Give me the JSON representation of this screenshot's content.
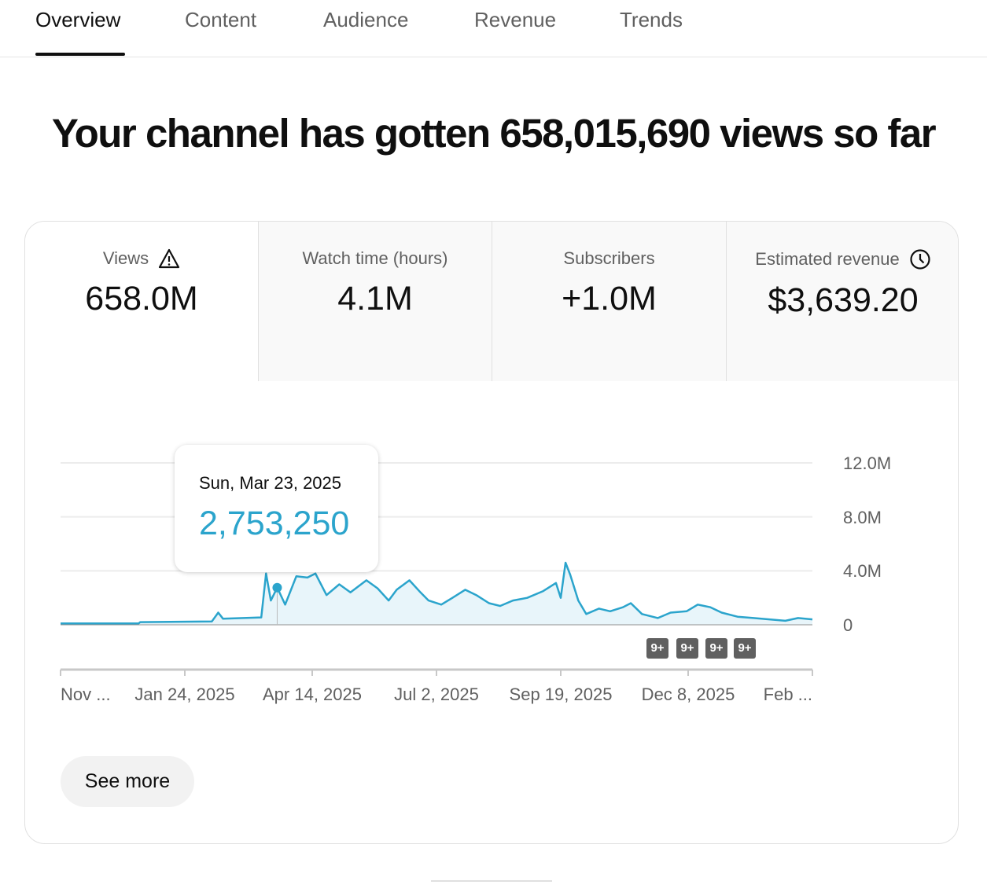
{
  "tabs": [
    {
      "label": "Overview",
      "active": true
    },
    {
      "label": "Content"
    },
    {
      "label": "Audience"
    },
    {
      "label": "Revenue"
    },
    {
      "label": "Trends"
    }
  ],
  "headline": "Your channel has gotten 658,015,690 views so far",
  "metrics": [
    {
      "label": "Views",
      "value": "658.0M",
      "icon": "warning-icon"
    },
    {
      "label": "Watch time (hours)",
      "value": "4.1M"
    },
    {
      "label": "Subscribers",
      "value": "+1.0M"
    },
    {
      "label": "Estimated revenue",
      "value": "$3,639.20",
      "icon": "clock-icon"
    }
  ],
  "tooltip": {
    "date": "Sun, Mar 23, 2025",
    "value": "2,753,250"
  },
  "badges": [
    "9+",
    "9+",
    "9+",
    "9+"
  ],
  "see_more": "See more",
  "colors": {
    "line": "#2ba4cc",
    "fill": "#e8f5fa",
    "accent_text": "#2ba4cc"
  },
  "chart_data": {
    "type": "line",
    "y_ticks": [
      "12.0M",
      "8.0M",
      "4.0M",
      "0"
    ],
    "ylim": [
      0,
      12000000
    ],
    "x_ticks": [
      "Nov ...",
      "Jan 24, 2025",
      "Apr 14, 2025",
      "Jul 2, 2025",
      "Sep 19, 2025",
      "Dec 8, 2025",
      "Feb ..."
    ],
    "grid": true,
    "highlight": {
      "date": "2025-03-23",
      "value": 2753250
    },
    "points": [
      [
        "2024-11-07",
        100000
      ],
      [
        "2024-12-26",
        100000
      ],
      [
        "2024-12-27",
        200000
      ],
      [
        "2025-02-10",
        250000
      ],
      [
        "2025-02-14",
        900000
      ],
      [
        "2025-02-17",
        450000
      ],
      [
        "2025-03-13",
        550000
      ],
      [
        "2025-03-16",
        3800000
      ],
      [
        "2025-03-19",
        1800000
      ],
      [
        "2025-03-23",
        2753250
      ],
      [
        "2025-03-28",
        1500000
      ],
      [
        "2025-04-04",
        3600000
      ],
      [
        "2025-04-11",
        3500000
      ],
      [
        "2025-04-16",
        3800000
      ],
      [
        "2025-04-23",
        2200000
      ],
      [
        "2025-05-01",
        3000000
      ],
      [
        "2025-05-08",
        2400000
      ],
      [
        "2025-05-18",
        3300000
      ],
      [
        "2025-05-25",
        2700000
      ],
      [
        "2025-06-01",
        1800000
      ],
      [
        "2025-06-06",
        2600000
      ],
      [
        "2025-06-14",
        3300000
      ],
      [
        "2025-06-21",
        2400000
      ],
      [
        "2025-06-26",
        1800000
      ],
      [
        "2025-07-04",
        1500000
      ],
      [
        "2025-07-11",
        2000000
      ],
      [
        "2025-07-19",
        2600000
      ],
      [
        "2025-07-26",
        2200000
      ],
      [
        "2025-08-03",
        1600000
      ],
      [
        "2025-08-10",
        1400000
      ],
      [
        "2025-08-18",
        1800000
      ],
      [
        "2025-08-27",
        2000000
      ],
      [
        "2025-09-06",
        2500000
      ],
      [
        "2025-09-14",
        3100000
      ],
      [
        "2025-09-17",
        2000000
      ],
      [
        "2025-09-20",
        4600000
      ],
      [
        "2025-09-23",
        3700000
      ],
      [
        "2025-09-28",
        1800000
      ],
      [
        "2025-10-03",
        800000
      ],
      [
        "2025-10-11",
        1200000
      ],
      [
        "2025-10-18",
        1000000
      ],
      [
        "2025-10-26",
        1300000
      ],
      [
        "2025-10-31",
        1600000
      ],
      [
        "2025-11-07",
        800000
      ],
      [
        "2025-11-17",
        500000
      ],
      [
        "2025-11-25",
        900000
      ],
      [
        "2025-12-05",
        1000000
      ],
      [
        "2025-12-12",
        1500000
      ],
      [
        "2025-12-20",
        1300000
      ],
      [
        "2025-12-27",
        900000
      ],
      [
        "2026-01-06",
        600000
      ],
      [
        "2026-01-16",
        500000
      ],
      [
        "2026-01-26",
        400000
      ],
      [
        "2026-02-05",
        300000
      ],
      [
        "2026-02-13",
        500000
      ],
      [
        "2026-02-22",
        400000
      ]
    ]
  }
}
